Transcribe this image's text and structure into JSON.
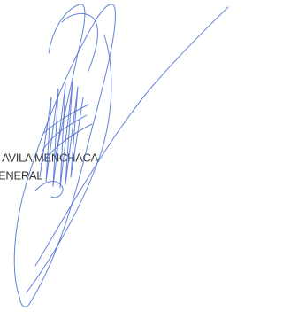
{
  "text": {
    "line1": "AVILA MENCHACA",
    "line2": "ENERAL"
  }
}
